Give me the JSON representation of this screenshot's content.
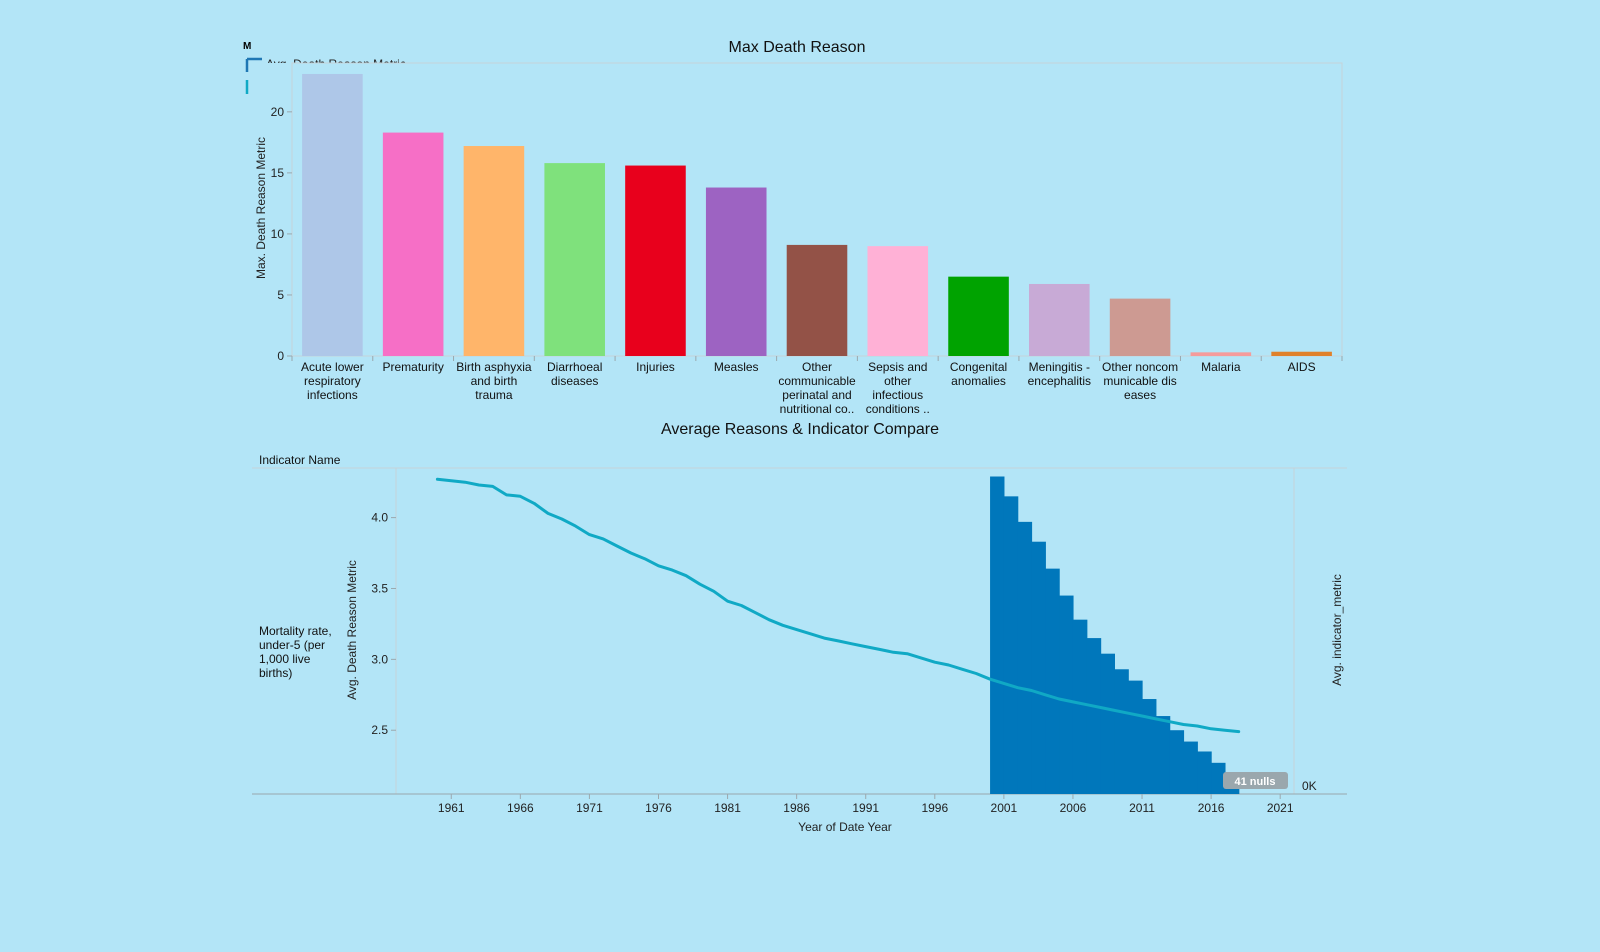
{
  "chart_data": [
    {
      "type": "bar",
      "title": "Max Death Reason",
      "ylabel": "Max. Death Reason Metric",
      "ylim": [
        0,
        24
      ],
      "yticks": [
        0,
        5,
        10,
        15,
        20
      ],
      "legend_fragment": "Avg. Death Reason Metric",
      "categories": [
        {
          "lines": [
            "Acute lower",
            "respiratory",
            "infections"
          ],
          "value": 23.1,
          "color": "#aec7e8"
        },
        {
          "lines": [
            "Prematurity"
          ],
          "value": 18.3,
          "color": "#f66fc6"
        },
        {
          "lines": [
            "Birth asphyxia",
            "and birth",
            "trauma"
          ],
          "value": 17.2,
          "color": "#ffb56a"
        },
        {
          "lines": [
            "Diarrhoeal",
            "diseases"
          ],
          "value": 15.8,
          "color": "#7fe17c"
        },
        {
          "lines": [
            "Injuries"
          ],
          "value": 15.6,
          "color": "#e8001c"
        },
        {
          "lines": [
            "Measles"
          ],
          "value": 13.8,
          "color": "#9d63c2"
        },
        {
          "lines": [
            "Other",
            "communicable",
            "perinatal and",
            "nutritional co.."
          ],
          "value": 9.1,
          "color": "#935247"
        },
        {
          "lines": [
            "Sepsis and",
            "other",
            "infectious",
            "conditions .."
          ],
          "value": 9.0,
          "color": "#ffb1d6"
        },
        {
          "lines": [
            "Congenital",
            "anomalies"
          ],
          "value": 6.5,
          "color": "#00a300"
        },
        {
          "lines": [
            "Meningitis -",
            "encephalitis"
          ],
          "value": 5.9,
          "color": "#c8aad6"
        },
        {
          "lines": [
            "Other noncom",
            "municable dis",
            "eases"
          ],
          "value": 4.7,
          "color": "#cd9a92"
        },
        {
          "lines": [
            "Malaria"
          ],
          "value": 0.3,
          "color": "#f59b9b"
        },
        {
          "lines": [
            "AIDS"
          ],
          "value": 0.35,
          "color": "#e0812a"
        }
      ]
    },
    {
      "type": "line",
      "title": "Average Reasons & Indicator Compare",
      "row_header": "Indicator Name",
      "row_label_lines": [
        "Mortality rate,",
        "under-5 (per",
        "1,000 live",
        "births)"
      ],
      "xlabel": "Year of Date Year",
      "ylabel": "Avg. Death Reason Metric",
      "y2label": "Avg. indicator_metric",
      "y2_tick_label": "0K",
      "nulls_badge": "41 nulls",
      "xlim": [
        1957,
        2022
      ],
      "ylim": [
        2.05,
        4.35
      ],
      "xticks": [
        1961,
        1966,
        1971,
        1976,
        1981,
        1986,
        1991,
        1996,
        2001,
        2006,
        2011,
        2016,
        2021
      ],
      "yticks": [
        2.5,
        3.0,
        3.5,
        4.0
      ],
      "line_color": "#10a9c5",
      "area_color": "#0077bb",
      "series": [
        {
          "name": "Avg. Death Reason Metric",
          "x": [
            1960,
            1961,
            1962,
            1963,
            1964,
            1965,
            1966,
            1967,
            1968,
            1969,
            1970,
            1971,
            1972,
            1973,
            1974,
            1975,
            1976,
            1977,
            1978,
            1979,
            1980,
            1981,
            1982,
            1983,
            1984,
            1985,
            1986,
            1987,
            1988,
            1989,
            1990,
            1991,
            1992,
            1993,
            1994,
            1995,
            1996,
            1997,
            1998,
            1999,
            2000,
            2001,
            2002,
            2003,
            2004,
            2005,
            2006,
            2007,
            2008,
            2009,
            2010,
            2011,
            2012,
            2013,
            2014,
            2015,
            2016,
            2017,
            2018
          ],
          "y": [
            4.27,
            4.26,
            4.25,
            4.23,
            4.22,
            4.16,
            4.15,
            4.1,
            4.03,
            3.99,
            3.94,
            3.88,
            3.85,
            3.8,
            3.75,
            3.71,
            3.66,
            3.63,
            3.59,
            3.53,
            3.48,
            3.41,
            3.38,
            3.33,
            3.28,
            3.24,
            3.21,
            3.18,
            3.15,
            3.13,
            3.11,
            3.09,
            3.07,
            3.05,
            3.04,
            3.01,
            2.98,
            2.96,
            2.93,
            2.9,
            2.86,
            2.83,
            2.8,
            2.78,
            2.75,
            2.72,
            2.7,
            2.68,
            2.66,
            2.64,
            2.62,
            2.6,
            2.58,
            2.56,
            2.54,
            2.53,
            2.51,
            2.5,
            2.49
          ]
        },
        {
          "name": "Avg. indicator_metric",
          "x": [
            2000,
            2001,
            2002,
            2003,
            2004,
            2005,
            2006,
            2007,
            2008,
            2009,
            2010,
            2011,
            2012,
            2013,
            2014,
            2015,
            2016,
            2017
          ],
          "y": [
            4.29,
            4.15,
            3.97,
            3.83,
            3.64,
            3.45,
            3.28,
            3.15,
            3.04,
            2.93,
            2.85,
            2.72,
            2.6,
            2.5,
            2.42,
            2.35,
            2.27,
            2.2
          ]
        }
      ]
    }
  ]
}
